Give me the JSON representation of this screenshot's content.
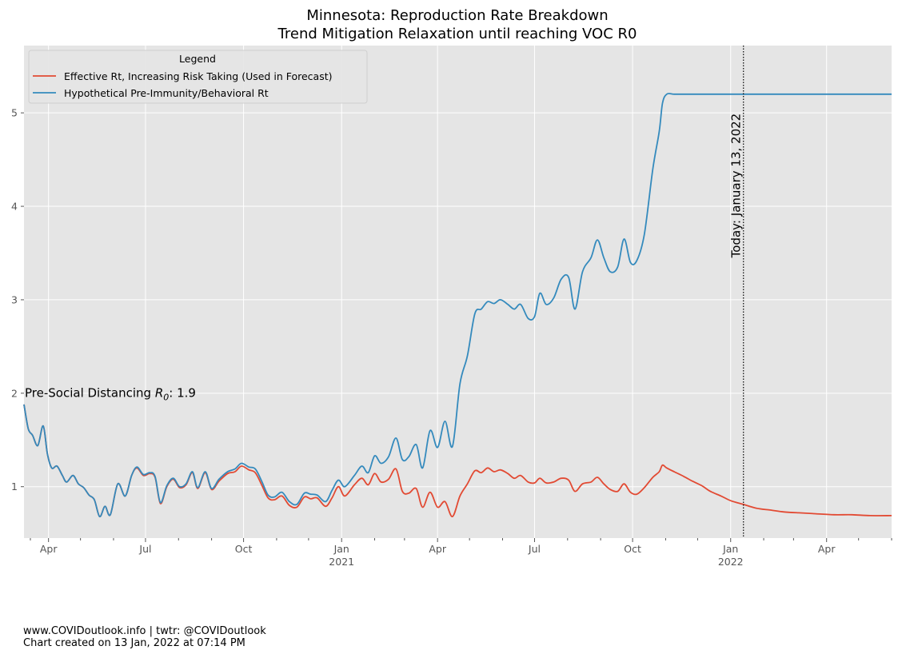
{
  "chart_data": {
    "type": "line",
    "title": "Minnesota: Reproduction Rate Breakdown",
    "subtitle": "Trend Mitigation Relaxation until reaching VOC R0",
    "x_type": "date",
    "xlim": [
      "2020-03-09",
      "2022-06-01"
    ],
    "ylim": [
      0.45,
      5.72
    ],
    "y_ticks": [
      1,
      2,
      3,
      4,
      5
    ],
    "x_ticks": [
      {
        "date": "2020-04-01",
        "label": "Apr",
        "year_label": ""
      },
      {
        "date": "2020-07-01",
        "label": "Jul",
        "year_label": ""
      },
      {
        "date": "2020-10-01",
        "label": "Oct",
        "year_label": ""
      },
      {
        "date": "2021-01-01",
        "label": "Jan",
        "year_label": "2021"
      },
      {
        "date": "2021-04-01",
        "label": "Apr",
        "year_label": ""
      },
      {
        "date": "2021-07-01",
        "label": "Jul",
        "year_label": ""
      },
      {
        "date": "2021-10-01",
        "label": "Oct",
        "year_label": ""
      },
      {
        "date": "2022-01-01",
        "label": "Jan",
        "year_label": "2022"
      },
      {
        "date": "2022-04-01",
        "label": "Apr",
        "year_label": ""
      }
    ],
    "minor_ticks": [
      "2020-03-15",
      "2020-05-01",
      "2020-06-01",
      "2020-08-01",
      "2020-09-01",
      "2020-11-01",
      "2020-12-01",
      "2021-02-01",
      "2021-03-01",
      "2021-05-01",
      "2021-06-01",
      "2021-08-01",
      "2021-09-01",
      "2021-11-01",
      "2021-12-01",
      "2022-02-01",
      "2022-03-01",
      "2022-05-01",
      "2022-06-01"
    ],
    "grid": true,
    "legend": {
      "title": "Legend",
      "placement": "top-left"
    },
    "series": [
      {
        "name": "Effective Rt, Increasing Risk Taking (Used in Forecast)",
        "color": "#E24A33",
        "points": [
          [
            "2020-03-09",
            1.88
          ],
          [
            "2020-03-13",
            1.62
          ],
          [
            "2020-03-17",
            1.55
          ],
          [
            "2020-03-22",
            1.44
          ],
          [
            "2020-03-27",
            1.65
          ],
          [
            "2020-03-31",
            1.35
          ],
          [
            "2020-04-04",
            1.2
          ],
          [
            "2020-04-09",
            1.22
          ],
          [
            "2020-04-14",
            1.12
          ],
          [
            "2020-04-18",
            1.05
          ],
          [
            "2020-04-24",
            1.12
          ],
          [
            "2020-04-29",
            1.03
          ],
          [
            "2020-05-04",
            0.99
          ],
          [
            "2020-05-09",
            0.91
          ],
          [
            "2020-05-14",
            0.86
          ],
          [
            "2020-05-19",
            0.68
          ],
          [
            "2020-05-24",
            0.79
          ],
          [
            "2020-05-29",
            0.7
          ],
          [
            "2020-06-05",
            1.03
          ],
          [
            "2020-06-12",
            0.9
          ],
          [
            "2020-06-18",
            1.12
          ],
          [
            "2020-06-23",
            1.2
          ],
          [
            "2020-06-29",
            1.12
          ],
          [
            "2020-07-05",
            1.14
          ],
          [
            "2020-07-10",
            1.1
          ],
          [
            "2020-07-15",
            0.82
          ],
          [
            "2020-07-21",
            1.0
          ],
          [
            "2020-07-27",
            1.08
          ],
          [
            "2020-08-02",
            0.99
          ],
          [
            "2020-08-08",
            1.02
          ],
          [
            "2020-08-14",
            1.15
          ],
          [
            "2020-08-19",
            0.98
          ],
          [
            "2020-08-26",
            1.15
          ],
          [
            "2020-09-01",
            0.97
          ],
          [
            "2020-09-08",
            1.06
          ],
          [
            "2020-09-16",
            1.14
          ],
          [
            "2020-09-23",
            1.16
          ],
          [
            "2020-09-29",
            1.22
          ],
          [
            "2020-10-06",
            1.18
          ],
          [
            "2020-10-12",
            1.15
          ],
          [
            "2020-10-18",
            1.02
          ],
          [
            "2020-10-24",
            0.88
          ],
          [
            "2020-10-30",
            0.86
          ],
          [
            "2020-11-06",
            0.9
          ],
          [
            "2020-11-13",
            0.8
          ],
          [
            "2020-11-20",
            0.78
          ],
          [
            "2020-11-27",
            0.89
          ],
          [
            "2020-12-03",
            0.87
          ],
          [
            "2020-12-09",
            0.88
          ],
          [
            "2020-12-17",
            0.79
          ],
          [
            "2020-12-23",
            0.88
          ],
          [
            "2020-12-29",
            1.0
          ],
          [
            "2021-01-04",
            0.9
          ],
          [
            "2021-01-13",
            1.02
          ],
          [
            "2021-01-20",
            1.09
          ],
          [
            "2021-01-26",
            1.02
          ],
          [
            "2021-02-01",
            1.14
          ],
          [
            "2021-02-07",
            1.05
          ],
          [
            "2021-02-14",
            1.08
          ],
          [
            "2021-02-21",
            1.19
          ],
          [
            "2021-02-27",
            0.95
          ],
          [
            "2021-03-05",
            0.93
          ],
          [
            "2021-03-12",
            0.98
          ],
          [
            "2021-03-18",
            0.78
          ],
          [
            "2021-03-25",
            0.94
          ],
          [
            "2021-04-01",
            0.78
          ],
          [
            "2021-04-08",
            0.84
          ],
          [
            "2021-04-15",
            0.68
          ],
          [
            "2021-04-22",
            0.9
          ],
          [
            "2021-04-29",
            1.03
          ],
          [
            "2021-05-06",
            1.17
          ],
          [
            "2021-05-12",
            1.15
          ],
          [
            "2021-05-18",
            1.2
          ],
          [
            "2021-05-24",
            1.16
          ],
          [
            "2021-05-30",
            1.18
          ],
          [
            "2021-06-06",
            1.14
          ],
          [
            "2021-06-12",
            1.09
          ],
          [
            "2021-06-18",
            1.12
          ],
          [
            "2021-06-25",
            1.05
          ],
          [
            "2021-07-01",
            1.04
          ],
          [
            "2021-07-06",
            1.09
          ],
          [
            "2021-07-12",
            1.04
          ],
          [
            "2021-07-19",
            1.05
          ],
          [
            "2021-07-26",
            1.09
          ],
          [
            "2021-08-02",
            1.07
          ],
          [
            "2021-08-08",
            0.95
          ],
          [
            "2021-08-15",
            1.03
          ],
          [
            "2021-08-23",
            1.05
          ],
          [
            "2021-08-29",
            1.1
          ],
          [
            "2021-09-04",
            1.03
          ],
          [
            "2021-09-10",
            0.97
          ],
          [
            "2021-09-17",
            0.95
          ],
          [
            "2021-09-23",
            1.03
          ],
          [
            "2021-09-29",
            0.94
          ],
          [
            "2021-10-05",
            0.92
          ],
          [
            "2021-10-12",
            0.99
          ],
          [
            "2021-10-20",
            1.1
          ],
          [
            "2021-10-26",
            1.16
          ],
          [
            "2021-10-29",
            1.23
          ],
          [
            "2021-11-02",
            1.2
          ],
          [
            "2021-11-09",
            1.16
          ],
          [
            "2021-11-18",
            1.11
          ],
          [
            "2021-11-26",
            1.06
          ],
          [
            "2021-12-05",
            1.01
          ],
          [
            "2021-12-13",
            0.95
          ],
          [
            "2021-12-23",
            0.9
          ],
          [
            "2022-01-01",
            0.85
          ],
          [
            "2022-01-13",
            0.81
          ],
          [
            "2022-01-25",
            0.77
          ],
          [
            "2022-02-07",
            0.75
          ],
          [
            "2022-02-20",
            0.73
          ],
          [
            "2022-03-06",
            0.72
          ],
          [
            "2022-03-22",
            0.71
          ],
          [
            "2022-04-08",
            0.7
          ],
          [
            "2022-04-25",
            0.7
          ],
          [
            "2022-05-12",
            0.69
          ],
          [
            "2022-06-01",
            0.69
          ]
        ]
      },
      {
        "name": "Hypothetical Pre-Immunity/Behavioral Rt",
        "color": "#348ABD",
        "points": [
          [
            "2020-03-09",
            1.88
          ],
          [
            "2020-03-13",
            1.62
          ],
          [
            "2020-03-17",
            1.55
          ],
          [
            "2020-03-22",
            1.44
          ],
          [
            "2020-03-27",
            1.65
          ],
          [
            "2020-03-31",
            1.35
          ],
          [
            "2020-04-04",
            1.2
          ],
          [
            "2020-04-09",
            1.22
          ],
          [
            "2020-04-14",
            1.12
          ],
          [
            "2020-04-18",
            1.05
          ],
          [
            "2020-04-24",
            1.12
          ],
          [
            "2020-04-29",
            1.03
          ],
          [
            "2020-05-04",
            0.99
          ],
          [
            "2020-05-09",
            0.91
          ],
          [
            "2020-05-14",
            0.86
          ],
          [
            "2020-05-19",
            0.68
          ],
          [
            "2020-05-24",
            0.79
          ],
          [
            "2020-05-29",
            0.7
          ],
          [
            "2020-06-05",
            1.03
          ],
          [
            "2020-06-12",
            0.9
          ],
          [
            "2020-06-18",
            1.12
          ],
          [
            "2020-06-23",
            1.21
          ],
          [
            "2020-06-29",
            1.13
          ],
          [
            "2020-07-05",
            1.15
          ],
          [
            "2020-07-10",
            1.11
          ],
          [
            "2020-07-15",
            0.83
          ],
          [
            "2020-07-21",
            1.01
          ],
          [
            "2020-07-27",
            1.09
          ],
          [
            "2020-08-02",
            1.0
          ],
          [
            "2020-08-08",
            1.03
          ],
          [
            "2020-08-14",
            1.16
          ],
          [
            "2020-08-19",
            0.99
          ],
          [
            "2020-08-26",
            1.16
          ],
          [
            "2020-09-01",
            0.98
          ],
          [
            "2020-09-08",
            1.08
          ],
          [
            "2020-09-16",
            1.16
          ],
          [
            "2020-09-23",
            1.19
          ],
          [
            "2020-09-29",
            1.25
          ],
          [
            "2020-10-06",
            1.21
          ],
          [
            "2020-10-12",
            1.19
          ],
          [
            "2020-10-18",
            1.06
          ],
          [
            "2020-10-24",
            0.91
          ],
          [
            "2020-10-30",
            0.89
          ],
          [
            "2020-11-06",
            0.94
          ],
          [
            "2020-11-13",
            0.84
          ],
          [
            "2020-11-20",
            0.81
          ],
          [
            "2020-11-27",
            0.93
          ],
          [
            "2020-12-03",
            0.92
          ],
          [
            "2020-12-09",
            0.91
          ],
          [
            "2020-12-17",
            0.84
          ],
          [
            "2020-12-23",
            0.96
          ],
          [
            "2020-12-29",
            1.07
          ],
          [
            "2021-01-04",
            1.0
          ],
          [
            "2021-01-13",
            1.12
          ],
          [
            "2021-01-20",
            1.22
          ],
          [
            "2021-01-26",
            1.15
          ],
          [
            "2021-02-01",
            1.33
          ],
          [
            "2021-02-07",
            1.25
          ],
          [
            "2021-02-14",
            1.32
          ],
          [
            "2021-02-21",
            1.52
          ],
          [
            "2021-02-27",
            1.29
          ],
          [
            "2021-03-05",
            1.32
          ],
          [
            "2021-03-12",
            1.45
          ],
          [
            "2021-03-18",
            1.2
          ],
          [
            "2021-03-25",
            1.6
          ],
          [
            "2021-04-01",
            1.42
          ],
          [
            "2021-04-08",
            1.7
          ],
          [
            "2021-04-15",
            1.43
          ],
          [
            "2021-04-22",
            2.1
          ],
          [
            "2021-04-29",
            2.4
          ],
          [
            "2021-05-06",
            2.85
          ],
          [
            "2021-05-12",
            2.9
          ],
          [
            "2021-05-18",
            2.98
          ],
          [
            "2021-05-24",
            2.96
          ],
          [
            "2021-05-30",
            3.0
          ],
          [
            "2021-06-06",
            2.95
          ],
          [
            "2021-06-12",
            2.9
          ],
          [
            "2021-06-18",
            2.95
          ],
          [
            "2021-06-25",
            2.8
          ],
          [
            "2021-07-01",
            2.82
          ],
          [
            "2021-07-06",
            3.07
          ],
          [
            "2021-07-12",
            2.95
          ],
          [
            "2021-07-19",
            3.02
          ],
          [
            "2021-07-26",
            3.22
          ],
          [
            "2021-08-02",
            3.24
          ],
          [
            "2021-08-08",
            2.9
          ],
          [
            "2021-08-15",
            3.3
          ],
          [
            "2021-08-23",
            3.45
          ],
          [
            "2021-08-29",
            3.64
          ],
          [
            "2021-09-04",
            3.45
          ],
          [
            "2021-09-10",
            3.3
          ],
          [
            "2021-09-17",
            3.35
          ],
          [
            "2021-09-23",
            3.65
          ],
          [
            "2021-09-29",
            3.4
          ],
          [
            "2021-10-05",
            3.42
          ],
          [
            "2021-10-12",
            3.7
          ],
          [
            "2021-10-20",
            4.4
          ],
          [
            "2021-10-26",
            4.8
          ],
          [
            "2021-10-29",
            5.1
          ],
          [
            "2021-11-02",
            5.2
          ],
          [
            "2021-11-09",
            5.2
          ],
          [
            "2021-11-18",
            5.2
          ],
          [
            "2021-11-26",
            5.2
          ],
          [
            "2021-12-05",
            5.2
          ],
          [
            "2021-12-13",
            5.2
          ],
          [
            "2021-12-23",
            5.2
          ],
          [
            "2022-01-01",
            5.2
          ],
          [
            "2022-01-13",
            5.2
          ],
          [
            "2022-01-25",
            5.2
          ],
          [
            "2022-02-07",
            5.2
          ],
          [
            "2022-02-20",
            5.2
          ],
          [
            "2022-03-06",
            5.2
          ],
          [
            "2022-03-22",
            5.2
          ],
          [
            "2022-04-08",
            5.2
          ],
          [
            "2022-04-25",
            5.2
          ],
          [
            "2022-05-12",
            5.2
          ],
          [
            "2022-06-01",
            5.2
          ]
        ]
      }
    ],
    "annotations": [
      {
        "text_prefix": "Pre-Social Distancing ",
        "text_symbol": "R",
        "text_subscript": "0",
        "text_suffix": ": 1.9",
        "x": "2020-03-09",
        "y": 1.97
      },
      {
        "text": "Today: January 13, 2022",
        "x": "2022-01-13",
        "orientation": "vertical",
        "line_style": "dotted"
      }
    ]
  },
  "footer": {
    "line1": "www.COVIDoutlook.info | twtr: @COVIDoutlook",
    "line2": "Chart created on 13 Jan, 2022 at 07:14 PM"
  }
}
